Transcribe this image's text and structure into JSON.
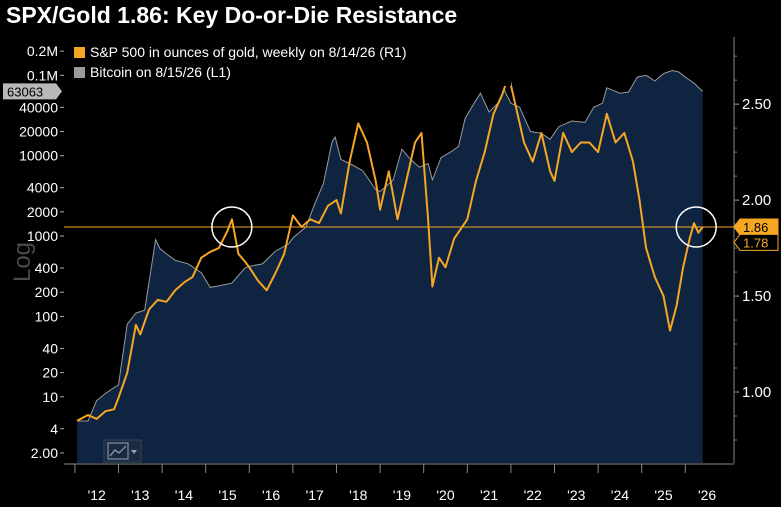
{
  "chart_data": {
    "type": "area",
    "title": "SPX/Gold 1.86: Key Do-or-Die Resistance",
    "ylabel_left": "Log",
    "x_ticks": [
      "'12",
      "'13",
      "'14",
      "'15",
      "'16",
      "'17",
      "'18",
      "'19",
      "'20",
      "'21",
      "'22",
      "'23",
      "'24",
      "'25",
      "'26"
    ],
    "left_axis": {
      "scale": "log",
      "range": [
        1.5,
        300000
      ],
      "ticks": [
        {
          "label": "0.2M",
          "value": 200000
        },
        {
          "label": "0.1M",
          "value": 100000
        },
        {
          "label": "40000",
          "value": 40000
        },
        {
          "label": "20000",
          "value": 20000
        },
        {
          "label": "10000",
          "value": 10000
        },
        {
          "label": "4000",
          "value": 4000
        },
        {
          "label": "2000",
          "value": 2000
        },
        {
          "label": "1000",
          "value": 1000
        },
        {
          "label": "400",
          "value": 400
        },
        {
          "label": "200",
          "value": 200
        },
        {
          "label": "100",
          "value": 100
        },
        {
          "label": "40",
          "value": 40
        },
        {
          "label": "20",
          "value": 20
        },
        {
          "label": "10",
          "value": 10
        },
        {
          "label": "4",
          "value": 4
        },
        {
          "label": "2.00",
          "value": 2
        }
      ]
    },
    "right_axis": {
      "scale": "linear",
      "range": [
        0.63,
        2.85
      ],
      "ticks": [
        {
          "label": "2.50",
          "value": 2.5
        },
        {
          "label": "2.00",
          "value": 2.0
        },
        {
          "label": "1.50",
          "value": 1.5
        },
        {
          "label": "1.00",
          "value": 1.0
        }
      ]
    },
    "series": [
      {
        "name": "S&P 500 in ounces of gold, weekly on 8/14/26 (R1)",
        "axis": "right",
        "color": "#f5a623",
        "last_value": "1.86",
        "points": [
          [
            2012.05,
            0.85
          ],
          [
            2012.3,
            0.88
          ],
          [
            2012.5,
            0.86
          ],
          [
            2012.7,
            0.9
          ],
          [
            2012.9,
            0.91
          ],
          [
            2013.0,
            0.97
          ],
          [
            2013.2,
            1.1
          ],
          [
            2013.4,
            1.35
          ],
          [
            2013.5,
            1.3
          ],
          [
            2013.7,
            1.43
          ],
          [
            2013.9,
            1.48
          ],
          [
            2014.1,
            1.47
          ],
          [
            2014.3,
            1.53
          ],
          [
            2014.5,
            1.57
          ],
          [
            2014.7,
            1.6
          ],
          [
            2014.9,
            1.7
          ],
          [
            2015.1,
            1.73
          ],
          [
            2015.3,
            1.75
          ],
          [
            2015.5,
            1.84
          ],
          [
            2015.6,
            1.9
          ],
          [
            2015.75,
            1.72
          ],
          [
            2015.9,
            1.68
          ],
          [
            2016.0,
            1.65
          ],
          [
            2016.2,
            1.58
          ],
          [
            2016.4,
            1.53
          ],
          [
            2016.6,
            1.62
          ],
          [
            2016.8,
            1.72
          ],
          [
            2017.0,
            1.92
          ],
          [
            2017.2,
            1.86
          ],
          [
            2017.4,
            1.9
          ],
          [
            2017.6,
            1.88
          ],
          [
            2017.8,
            1.97
          ],
          [
            2018.0,
            2.0
          ],
          [
            2018.1,
            1.93
          ],
          [
            2018.3,
            2.2
          ],
          [
            2018.5,
            2.4
          ],
          [
            2018.7,
            2.3
          ],
          [
            2018.9,
            2.1
          ],
          [
            2019.0,
            1.95
          ],
          [
            2019.2,
            2.15
          ],
          [
            2019.4,
            1.9
          ],
          [
            2019.6,
            2.1
          ],
          [
            2019.8,
            2.3
          ],
          [
            2019.95,
            2.35
          ],
          [
            2020.1,
            1.9
          ],
          [
            2020.2,
            1.55
          ],
          [
            2020.35,
            1.7
          ],
          [
            2020.5,
            1.65
          ],
          [
            2020.7,
            1.8
          ],
          [
            2020.85,
            1.85
          ],
          [
            2021.0,
            1.9
          ],
          [
            2021.2,
            2.1
          ],
          [
            2021.4,
            2.25
          ],
          [
            2021.6,
            2.45
          ],
          [
            2021.8,
            2.55
          ],
          [
            2021.95,
            2.65
          ],
          [
            2022.1,
            2.5
          ],
          [
            2022.3,
            2.3
          ],
          [
            2022.5,
            2.2
          ],
          [
            2022.7,
            2.35
          ],
          [
            2022.9,
            2.15
          ],
          [
            2023.0,
            2.1
          ],
          [
            2023.2,
            2.35
          ],
          [
            2023.4,
            2.25
          ],
          [
            2023.6,
            2.3
          ],
          [
            2023.8,
            2.3
          ],
          [
            2024.0,
            2.25
          ],
          [
            2024.2,
            2.45
          ],
          [
            2024.4,
            2.3
          ],
          [
            2024.6,
            2.35
          ],
          [
            2024.8,
            2.2
          ],
          [
            2024.95,
            2.0
          ],
          [
            2025.1,
            1.75
          ],
          [
            2025.3,
            1.6
          ],
          [
            2025.5,
            1.5
          ],
          [
            2025.65,
            1.32
          ],
          [
            2025.8,
            1.45
          ],
          [
            2025.95,
            1.65
          ],
          [
            2026.1,
            1.8
          ],
          [
            2026.2,
            1.88
          ],
          [
            2026.3,
            1.83
          ],
          [
            2026.4,
            1.86
          ]
        ]
      },
      {
        "name": "Bitcoin on 8/15/26 (L1)",
        "axis": "left",
        "color": "#9a9a9a",
        "last_value": "63063",
        "points": [
          [
            2012.05,
            5
          ],
          [
            2012.3,
            5
          ],
          [
            2012.5,
            9
          ],
          [
            2012.7,
            11
          ],
          [
            2012.9,
            13
          ],
          [
            2013.0,
            14
          ],
          [
            2013.2,
            80
          ],
          [
            2013.4,
            110
          ],
          [
            2013.6,
            120
          ],
          [
            2013.85,
            900
          ],
          [
            2013.95,
            700
          ],
          [
            2014.1,
            600
          ],
          [
            2014.3,
            500
          ],
          [
            2014.6,
            450
          ],
          [
            2014.9,
            350
          ],
          [
            2015.1,
            230
          ],
          [
            2015.3,
            240
          ],
          [
            2015.6,
            260
          ],
          [
            2015.9,
            400
          ],
          [
            2016.0,
            420
          ],
          [
            2016.3,
            450
          ],
          [
            2016.6,
            650
          ],
          [
            2016.9,
            800
          ],
          [
            2017.0,
            950
          ],
          [
            2017.3,
            1300
          ],
          [
            2017.5,
            2500
          ],
          [
            2017.7,
            4500
          ],
          [
            2017.9,
            15000
          ],
          [
            2017.97,
            17000
          ],
          [
            2018.1,
            9000
          ],
          [
            2018.3,
            8000
          ],
          [
            2018.6,
            6500
          ],
          [
            2018.9,
            3800
          ],
          [
            2019.0,
            3600
          ],
          [
            2019.3,
            5000
          ],
          [
            2019.5,
            12000
          ],
          [
            2019.7,
            9000
          ],
          [
            2019.9,
            7200
          ],
          [
            2020.1,
            8000
          ],
          [
            2020.2,
            5000
          ],
          [
            2020.4,
            9500
          ],
          [
            2020.6,
            11000
          ],
          [
            2020.8,
            13000
          ],
          [
            2020.95,
            29000
          ],
          [
            2021.1,
            40000
          ],
          [
            2021.3,
            60000
          ],
          [
            2021.5,
            35000
          ],
          [
            2021.7,
            45000
          ],
          [
            2021.85,
            65000
          ],
          [
            2022.0,
            45000
          ],
          [
            2022.2,
            40000
          ],
          [
            2022.45,
            20000
          ],
          [
            2022.7,
            19000
          ],
          [
            2022.9,
            16000
          ],
          [
            2023.1,
            23000
          ],
          [
            2023.4,
            27000
          ],
          [
            2023.7,
            26000
          ],
          [
            2023.9,
            40000
          ],
          [
            2024.1,
            45000
          ],
          [
            2024.2,
            70000
          ],
          [
            2024.5,
            60000
          ],
          [
            2024.7,
            62000
          ],
          [
            2024.9,
            95000
          ],
          [
            2025.1,
            100000
          ],
          [
            2025.3,
            85000
          ],
          [
            2025.5,
            105000
          ],
          [
            2025.7,
            115000
          ],
          [
            2025.85,
            110000
          ],
          [
            2026.0,
            95000
          ],
          [
            2026.2,
            80000
          ],
          [
            2026.4,
            63063
          ]
        ]
      }
    ],
    "reference_line": {
      "value": 1.86,
      "axis": "right",
      "color": "#f5a623"
    },
    "right_badges": [
      {
        "label": "1.86",
        "value": 1.86,
        "bg": "#f5a623",
        "fg": "#000000"
      },
      {
        "label": "1.78",
        "value": 1.78,
        "bg": "#000000",
        "fg": "#f5a623"
      }
    ],
    "left_badge": {
      "label": "63063",
      "value": 63063
    },
    "highlights": [
      {
        "x": 2015.6,
        "y": 1.86
      },
      {
        "x": 2026.25,
        "y": 1.86
      }
    ],
    "legend_placement": "top-left",
    "grid": false,
    "x_range": [
      2011.75,
      2026.75
    ]
  }
}
